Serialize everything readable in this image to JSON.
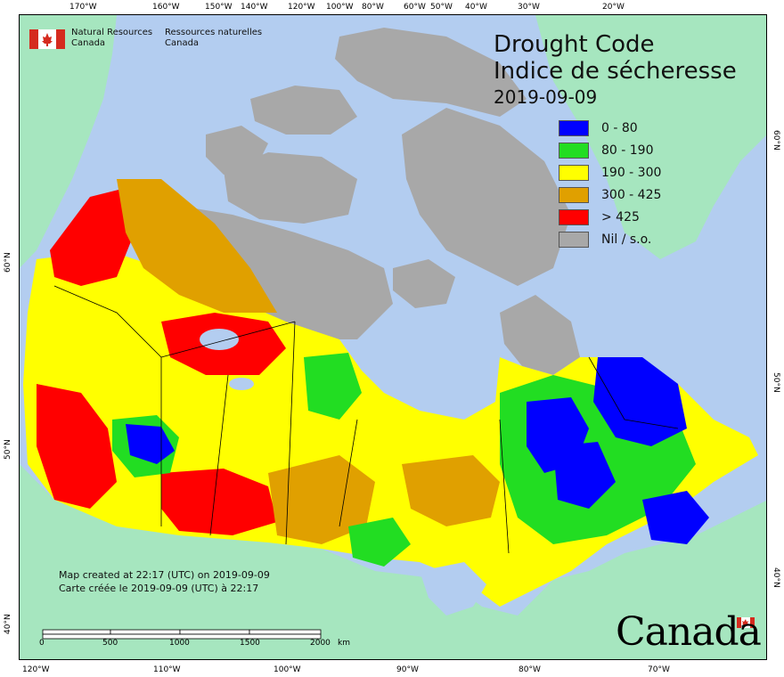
{
  "title": {
    "line1": "Drought Code",
    "line2": "Indice de sécheresse",
    "date": "2019-09-09"
  },
  "agency": {
    "en_line1": "Natural Resources",
    "en_line2": "Canada",
    "fr_line1": "Ressources naturelles",
    "fr_line2": "Canada"
  },
  "legend": [
    {
      "label": "0 - 80",
      "color": "#0000ff"
    },
    {
      "label": "80 - 190",
      "color": "#22dd22"
    },
    {
      "label": "190 - 300",
      "color": "#ffff00"
    },
    {
      "label": "300 - 425",
      "color": "#e0a000"
    },
    {
      "label": "> 425",
      "color": "#ff0000"
    },
    {
      "label": "Nil / s.o.",
      "color": "#a8a8a8"
    }
  ],
  "timestamps": {
    "en": "Map created at 22:17 (UTC) on 2019-09-09",
    "fr": "Carte créée le 2019-09-09 (UTC) à 22:17"
  },
  "scalebar": {
    "labels": [
      "0",
      "500",
      "1000",
      "1500",
      "2000"
    ],
    "unit": "km"
  },
  "graticule": {
    "top": [
      "170°W",
      "160°W",
      "150°W",
      "140°W",
      "120°W",
      "100°W",
      "80°W",
      "60°W",
      "50°W",
      "40°W",
      "30°W",
      "20°W"
    ],
    "bottom": [
      "120°W",
      "110°W",
      "100°W",
      "90°W",
      "80°W",
      "70°W"
    ],
    "left": [
      "60°N",
      "50°N",
      "40°N"
    ],
    "right": [
      "60°N",
      "50°N",
      "40°N"
    ]
  },
  "wordmark": "Canada",
  "colors": {
    "ocean": "#b3cdf0",
    "foreign_land": "#a6e6bf",
    "nodata": "#a8a8a8",
    "flag_red": "#d52b1e"
  }
}
